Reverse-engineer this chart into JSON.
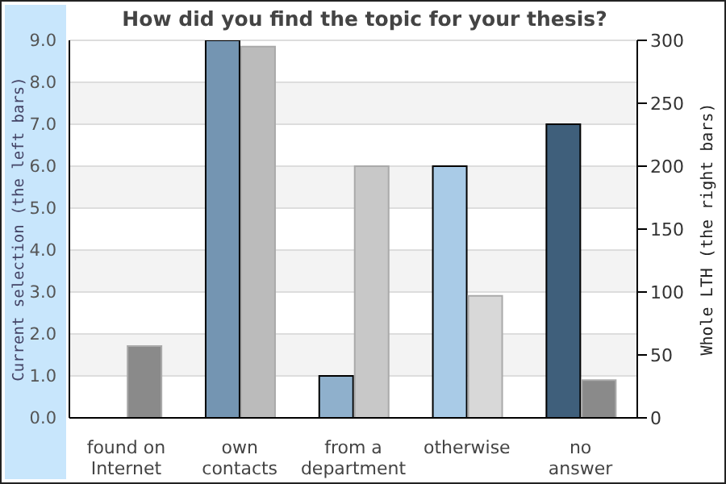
{
  "chart_data": {
    "type": "bar",
    "title": "How did you find the topic for your thesis?",
    "ylabel": "Current selection (the left bars)",
    "y2label": "Whole LTH (the right bars)",
    "categories": [
      "found on Internet",
      "own contacts",
      "from a department",
      "otherwise",
      "no answer"
    ],
    "series": [
      {
        "colors": [
          "#7495b2",
          "#7495b2",
          "#8fb0cc",
          "#a9cbe7",
          "#3f5f7b"
        ],
        "values": [
          0,
          9,
          1,
          6,
          7
        ]
      },
      {
        "colors": [
          "#8a8a8a",
          "#bbbbbb",
          "#c8c8c8",
          "#d8d8d8",
          "#8a8a8a"
        ],
        "values": [
          57,
          295,
          200,
          97,
          30
        ],
        "axis": "y2"
      }
    ],
    "ylim": [
      0,
      9
    ],
    "yticks": [
      {
        "value": 0,
        "label": "0.0"
      },
      {
        "value": 1,
        "label": "1.0"
      },
      {
        "value": 2,
        "label": "2.0"
      },
      {
        "value": 3,
        "label": "3.0"
      },
      {
        "value": 4,
        "label": "4.0"
      },
      {
        "value": 5,
        "label": "5.0"
      },
      {
        "value": 6,
        "label": "6.0"
      },
      {
        "value": 7,
        "label": "7.0"
      },
      {
        "value": 8,
        "label": "8.0"
      },
      {
        "value": 9,
        "label": "9.0"
      }
    ],
    "y2lim": [
      0,
      300
    ],
    "y2ticks": [
      0,
      50,
      100,
      150,
      200,
      250,
      300
    ],
    "grid": "y",
    "legend": false
  }
}
